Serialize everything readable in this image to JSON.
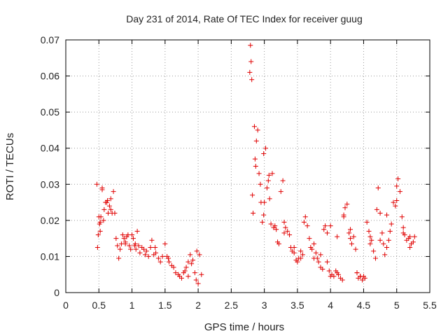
{
  "chart_data": {
    "type": "scatter",
    "title": "Day 231 of 2014, Rate Of TEC Index for receiver guug",
    "xlabel": "GPS time / hours",
    "ylabel": "ROTI / TECUs",
    "xlim": [
      0,
      5.5
    ],
    "ylim": [
      0,
      0.07
    ],
    "xticks": [
      0,
      0.5,
      1,
      1.5,
      2,
      2.5,
      3,
      3.5,
      4,
      4.5,
      5,
      5.5
    ],
    "xtick_labels": [
      "0",
      "0.5",
      "1",
      "1.5",
      "2",
      "2.5",
      "3",
      "3.5",
      "4",
      "4.5",
      "5",
      "5.5"
    ],
    "yticks": [
      0,
      0.01,
      0.02,
      0.03,
      0.04,
      0.05,
      0.06,
      0.07
    ],
    "ytick_labels": [
      "0",
      "0.01",
      "0.02",
      "0.03",
      "0.04",
      "0.05",
      "0.06",
      "0.07"
    ],
    "grid": true,
    "marker": "+",
    "color": "#e00000",
    "series": [
      {
        "x": [
          0.47,
          0.48,
          0.49,
          0.5,
          0.51,
          0.52,
          0.53,
          0.55,
          0.57,
          0.58,
          0.6,
          0.62,
          0.64,
          0.66,
          0.68,
          0.7,
          0.72,
          0.74,
          0.76,
          0.78,
          0.8,
          0.82,
          0.84,
          0.86,
          0.88,
          0.9,
          0.92,
          0.94,
          0.96,
          0.98,
          1.0,
          1.02,
          1.04,
          1.06,
          1.08,
          1.1,
          1.12,
          1.15,
          1.18,
          1.2,
          1.22,
          1.25,
          1.28,
          1.3,
          1.33,
          1.36,
          1.4,
          1.43,
          1.46,
          1.5,
          1.53,
          1.56,
          1.6,
          1.63,
          1.66,
          1.7,
          1.72,
          1.75,
          1.78,
          1.8,
          1.82,
          1.85,
          1.88,
          1.9,
          1.92,
          1.95,
          1.97,
          2.0,
          2.02,
          2.05,
          2.78,
          2.79,
          2.8,
          2.81,
          2.82,
          2.83,
          2.85,
          2.86,
          2.87,
          2.88,
          2.9,
          2.92,
          2.94,
          2.95,
          2.97,
          2.99,
          3.0,
          3.02,
          3.04,
          3.06,
          3.08,
          3.1,
          3.12,
          3.14,
          3.16,
          3.18,
          3.2,
          3.22,
          3.25,
          3.28,
          3.3,
          3.32,
          3.35,
          3.38,
          3.4,
          3.42,
          3.45,
          3.48,
          3.5,
          3.52,
          3.55,
          3.58,
          3.6,
          3.62,
          3.65,
          3.68,
          3.7,
          3.72,
          3.75,
          3.78,
          3.8,
          3.82,
          3.85,
          3.88,
          3.9,
          3.92,
          3.95,
          3.98,
          4.0,
          4.02,
          4.05,
          4.08,
          4.1,
          4.12,
          4.15,
          4.18,
          4.2,
          4.22,
          4.25,
          4.28,
          4.3,
          4.32,
          4.35,
          4.38,
          4.4,
          4.42,
          4.45,
          4.48,
          4.5,
          4.52,
          4.55,
          4.58,
          4.6,
          4.62,
          4.65,
          4.68,
          4.7,
          4.72,
          4.75,
          4.78,
          4.8,
          4.82,
          4.85,
          4.88,
          4.9,
          4.92,
          4.95,
          4.98,
          5.0,
          5.02,
          5.05,
          5.08,
          5.1,
          5.12,
          5.15,
          5.18,
          5.2,
          5.22,
          5.25,
          5.27,
          0.52,
          0.55,
          0.63,
          0.68,
          0.9,
          1.05,
          1.35,
          1.55,
          1.85,
          1.98,
          2.99,
          3.07,
          3.3,
          3.45,
          3.55,
          3.75,
          3.85,
          3.95,
          4.0,
          4.1,
          4.2,
          4.3,
          4.4,
          4.45,
          4.6,
          4.75,
          4.85,
          5.0,
          5.1,
          5.2
        ],
        "y": [
          0.03,
          0.0125,
          0.016,
          0.021,
          0.019,
          0.017,
          0.021,
          0.029,
          0.02,
          0.023,
          0.025,
          0.025,
          0.022,
          0.024,
          0.026,
          0.022,
          0.028,
          0.022,
          0.015,
          0.013,
          0.0095,
          0.012,
          0.0135,
          0.016,
          0.015,
          0.014,
          0.0155,
          0.016,
          0.013,
          0.012,
          0.016,
          0.015,
          0.013,
          0.012,
          0.017,
          0.013,
          0.011,
          0.0125,
          0.012,
          0.0105,
          0.0115,
          0.01,
          0.0125,
          0.0145,
          0.0105,
          0.011,
          0.0095,
          0.0085,
          0.01,
          0.0135,
          0.01,
          0.0085,
          0.0075,
          0.007,
          0.0055,
          0.005,
          0.0045,
          0.004,
          0.0055,
          0.006,
          0.007,
          0.0085,
          0.0105,
          0.008,
          0.009,
          0.0055,
          0.0035,
          0.0025,
          0.0105,
          0.005,
          0.061,
          0.0685,
          0.064,
          0.059,
          0.027,
          0.022,
          0.046,
          0.037,
          0.035,
          0.042,
          0.045,
          0.033,
          0.03,
          0.025,
          0.0195,
          0.0215,
          0.025,
          0.04,
          0.029,
          0.031,
          0.026,
          0.019,
          0.033,
          0.018,
          0.0185,
          0.0175,
          0.014,
          0.0135,
          0.028,
          0.031,
          0.0195,
          0.018,
          0.017,
          0.016,
          0.0125,
          0.0115,
          0.011,
          0.009,
          0.0085,
          0.0095,
          0.0115,
          0.0105,
          0.0195,
          0.021,
          0.0185,
          0.015,
          0.0125,
          0.012,
          0.0095,
          0.011,
          0.0095,
          0.0085,
          0.007,
          0.0065,
          0.0175,
          0.0185,
          0.0165,
          0.006,
          0.0045,
          0.005,
          0.0045,
          0.006,
          0.0055,
          0.005,
          0.004,
          0.0035,
          0.021,
          0.0235,
          0.0245,
          0.0165,
          0.015,
          0.0135,
          0.0155,
          0.012,
          0.0055,
          0.004,
          0.0045,
          0.0035,
          0.0045,
          0.004,
          0.0195,
          0.017,
          0.0155,
          0.0145,
          0.0115,
          0.0095,
          0.023,
          0.029,
          0.022,
          0.0165,
          0.0135,
          0.0105,
          0.0125,
          0.0145,
          0.017,
          0.019,
          0.025,
          0.024,
          0.0295,
          0.0315,
          0.028,
          0.021,
          0.018,
          0.016,
          0.0145,
          0.015,
          0.0125,
          0.0135,
          0.014,
          0.0155,
          0.0195,
          0.0285,
          0.0255,
          0.023,
          0.0135,
          0.0135,
          0.0125,
          0.0095,
          0.0045,
          0.0115,
          0.0385,
          0.0325,
          0.0165,
          0.0125,
          0.0095,
          0.0135,
          0.0105,
          0.0085,
          0.0185,
          0.0155,
          0.0215,
          0.0175,
          0.0055,
          0.0045,
          0.0135,
          0.0145,
          0.0215,
          0.0255,
          0.0165,
          0.0155
        ]
      }
    ]
  }
}
